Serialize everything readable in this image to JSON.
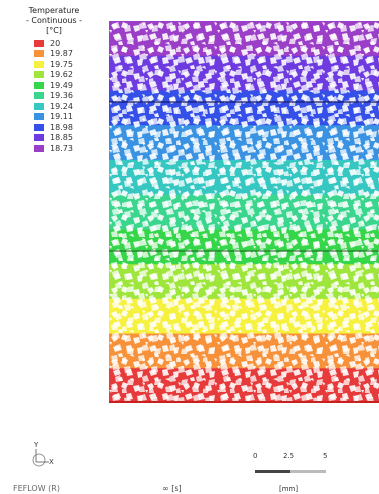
{
  "legend": {
    "title_lines": [
      "Temperature",
      "- Continuous -",
      "[°C]"
    ],
    "items": [
      {
        "label": "20",
        "color": "#e73b3b"
      },
      {
        "label": "19.87",
        "color": "#f7913a"
      },
      {
        "label": "19.75",
        "color": "#f6f03e"
      },
      {
        "label": "19.62",
        "color": "#9ee63c"
      },
      {
        "label": "19.49",
        "color": "#36d64a"
      },
      {
        "label": "19.36",
        "color": "#3bd68e"
      },
      {
        "label": "19.24",
        "color": "#36c7c2"
      },
      {
        "label": "19.11",
        "color": "#3a93e2"
      },
      {
        "label": "18.98",
        "color": "#3450e8"
      },
      {
        "label": "18.85",
        "color": "#6d3be0"
      },
      {
        "label": "18.73",
        "color": "#9b3ec8"
      }
    ]
  },
  "plot": {
    "band_colors": [
      "#9b3ec8",
      "#6d3be0",
      "#3450e8",
      "#3a93e2",
      "#36c7c2",
      "#3bd68e",
      "#36d64a",
      "#9ee63c",
      "#f6f03e",
      "#f7913a",
      "#e73b3b"
    ]
  },
  "axes": {
    "y_label": "Y",
    "x_label": "X"
  },
  "footer": {
    "brand": "FEFLOW (R)",
    "time": "∞ [s]"
  },
  "scale_bar": {
    "ticks": [
      "0",
      "2.5",
      "5"
    ],
    "unit": "[mm]"
  }
}
